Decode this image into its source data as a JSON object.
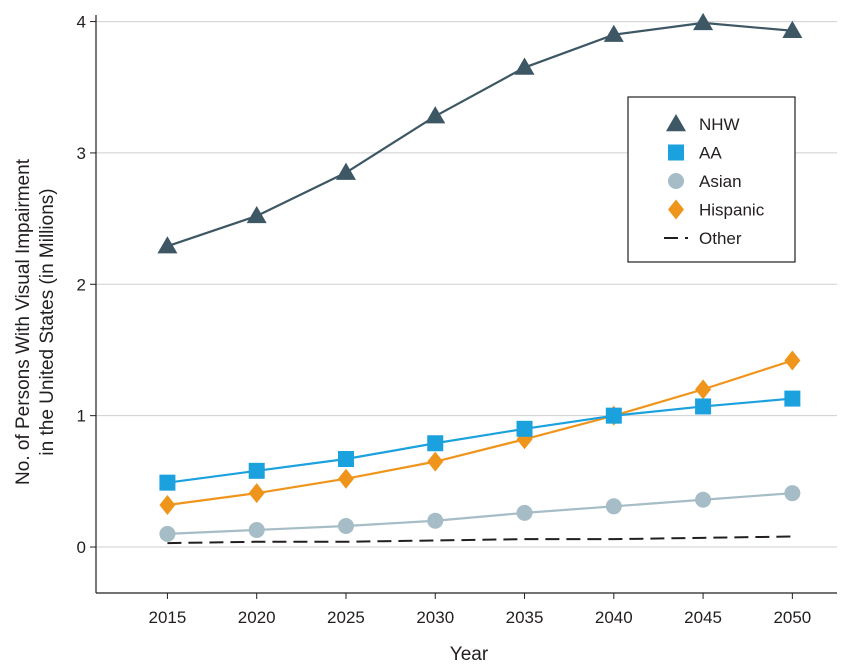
{
  "chart_data": {
    "type": "line",
    "title": "",
    "xlabel": "Year",
    "ylabel_lines": [
      "No. of Persons With Visual Impairment",
      "in the United States (in Millions)"
    ],
    "x": [
      2015,
      2020,
      2025,
      2030,
      2035,
      2040,
      2045,
      2050
    ],
    "xlim": [
      2011,
      2052.5
    ],
    "ylim": [
      -0.35,
      4.05
    ],
    "yticks": [
      0,
      1,
      2,
      3,
      4
    ],
    "grid": true,
    "legend_position": "top-right",
    "series": [
      {
        "name": "NHW",
        "marker": "triangle",
        "color": "#3e5764",
        "dashed": false,
        "values": [
          2.29,
          2.52,
          2.85,
          3.28,
          3.65,
          3.9,
          3.99,
          3.93
        ]
      },
      {
        "name": "AA",
        "marker": "square",
        "color": "#1ba1dd",
        "dashed": false,
        "values": [
          0.49,
          0.58,
          0.67,
          0.79,
          0.9,
          1.0,
          1.07,
          1.13
        ]
      },
      {
        "name": "Asian",
        "marker": "circle",
        "color": "#a6bcc6",
        "dashed": false,
        "values": [
          0.1,
          0.13,
          0.16,
          0.2,
          0.26,
          0.31,
          0.36,
          0.41
        ]
      },
      {
        "name": "Hispanic",
        "marker": "diamond",
        "color": "#f0951c",
        "dashed": false,
        "values": [
          0.32,
          0.41,
          0.52,
          0.65,
          0.82,
          1.0,
          1.2,
          1.42
        ]
      },
      {
        "name": "Other",
        "marker": "none",
        "color": "#231f20",
        "dashed": true,
        "values": [
          0.03,
          0.04,
          0.04,
          0.05,
          0.06,
          0.06,
          0.07,
          0.08
        ]
      }
    ]
  }
}
